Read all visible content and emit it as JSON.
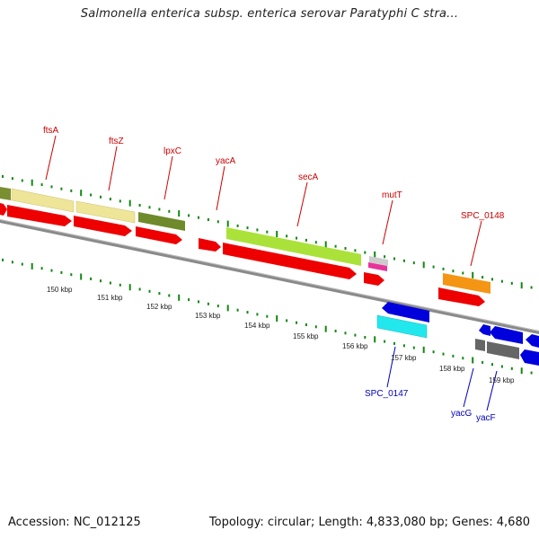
{
  "title": "Salmonella enterica subsp. enterica serovar Paratyphi C stra...",
  "footer": {
    "accession": "Accession: NC_012125",
    "stats": "Topology: circular; Length: 4,833,080 bp; Genes: 4,680"
  },
  "colors": {
    "red": "#ee0000",
    "blue": "#0000cc",
    "tick": "#118811",
    "backbone": "#888888",
    "label_red": "#cc0000",
    "label_blue": "#0000bb"
  },
  "kbp_labels": [
    "150 kbp",
    "151 kbp",
    "152 kbp",
    "153 kbp",
    "154 kbp",
    "155 kbp",
    "156 kbp",
    "157 kbp",
    "158 kbp",
    "159 kbp"
  ],
  "gene_labels_top": [
    "ftsA",
    "ftsZ",
    "lpxC",
    "yacA",
    "secA",
    "mutT",
    "SPC_0148"
  ],
  "gene_labels_bottom": [
    "SPC_0147",
    "yacG",
    "yacF"
  ]
}
